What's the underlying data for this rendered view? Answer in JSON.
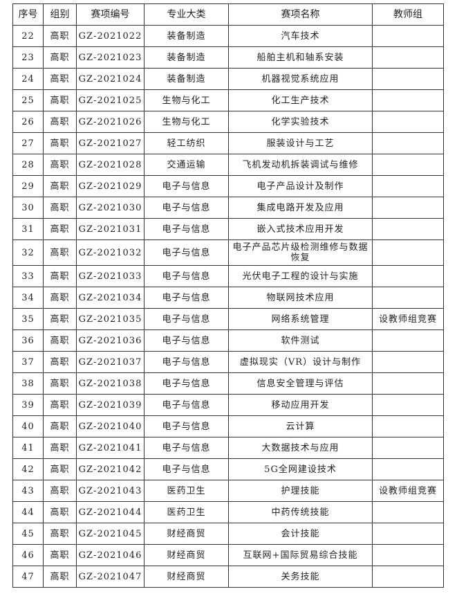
{
  "headers": [
    "序号",
    "组别",
    "赛项编号",
    "专业大类",
    "赛项名称",
    "教师组"
  ],
  "rows": [
    [
      "22",
      "高职",
      "GZ-2021022",
      "装备制造",
      "汽车技术",
      ""
    ],
    [
      "23",
      "高职",
      "GZ-2021023",
      "装备制造",
      "船舶主机和轴系安装",
      ""
    ],
    [
      "24",
      "高职",
      "GZ-2021024",
      "装备制造",
      "机器视觉系统应用",
      ""
    ],
    [
      "25",
      "高职",
      "GZ-2021025",
      "生物与化工",
      "化工生产技术",
      ""
    ],
    [
      "26",
      "高职",
      "GZ-2021026",
      "生物与化工",
      "化学实验技术",
      ""
    ],
    [
      "27",
      "高职",
      "GZ-2021027",
      "轻工纺织",
      "服装设计与工艺",
      ""
    ],
    [
      "28",
      "高职",
      "GZ-2021028",
      "交通运输",
      "飞机发动机拆装调试与维修",
      ""
    ],
    [
      "29",
      "高职",
      "GZ-2021029",
      "电子与信息",
      "电子产品设计及制作",
      ""
    ],
    [
      "30",
      "高职",
      "GZ-2021030",
      "电子与信息",
      "集成电路开发及应用",
      ""
    ],
    [
      "31",
      "高职",
      "GZ-2021031",
      "电子与信息",
      "嵌入式技术应用开发",
      ""
    ],
    [
      "32",
      "高职",
      "GZ-2021032",
      "电子与信息",
      "电子产品芯片级检测维修与数据恢复",
      ""
    ],
    [
      "33",
      "高职",
      "GZ-2021033",
      "电子与信息",
      "光伏电子工程的设计与实施",
      ""
    ],
    [
      "34",
      "高职",
      "GZ-2021034",
      "电子与信息",
      "物联网技术应用",
      ""
    ],
    [
      "35",
      "高职",
      "GZ-2021035",
      "电子与信息",
      "网络系统管理",
      "设教师组竞赛"
    ],
    [
      "36",
      "高职",
      "GZ-2021036",
      "电子与信息",
      "软件测试",
      ""
    ],
    [
      "37",
      "高职",
      "GZ-2021037",
      "电子与信息",
      "虚拟现实（VR）设计与制作",
      ""
    ],
    [
      "38",
      "高职",
      "GZ-2021038",
      "电子与信息",
      "信息安全管理与评估",
      ""
    ],
    [
      "39",
      "高职",
      "GZ-2021039",
      "电子与信息",
      "移动应用开发",
      ""
    ],
    [
      "40",
      "高职",
      "GZ-2021040",
      "电子与信息",
      "云计算",
      ""
    ],
    [
      "41",
      "高职",
      "GZ-2021041",
      "电子与信息",
      "大数据技术与应用",
      ""
    ],
    [
      "42",
      "高职",
      "GZ-2021042",
      "电子与信息",
      "5G全网建设技术",
      ""
    ],
    [
      "43",
      "高职",
      "GZ-2021043",
      "医药卫生",
      "护理技能",
      "设教师组竞赛"
    ],
    [
      "44",
      "高职",
      "GZ-2021044",
      "医药卫生",
      "中药传统技能",
      ""
    ],
    [
      "45",
      "高职",
      "GZ-2021045",
      "财经商贸",
      "会计技能",
      ""
    ],
    [
      "46",
      "高职",
      "GZ-2021046",
      "财经商贸",
      "互联网+国际贸易综合技能",
      ""
    ],
    [
      "47",
      "高职",
      "GZ-2021047",
      "财经商贸",
      "关务技能",
      ""
    ]
  ]
}
